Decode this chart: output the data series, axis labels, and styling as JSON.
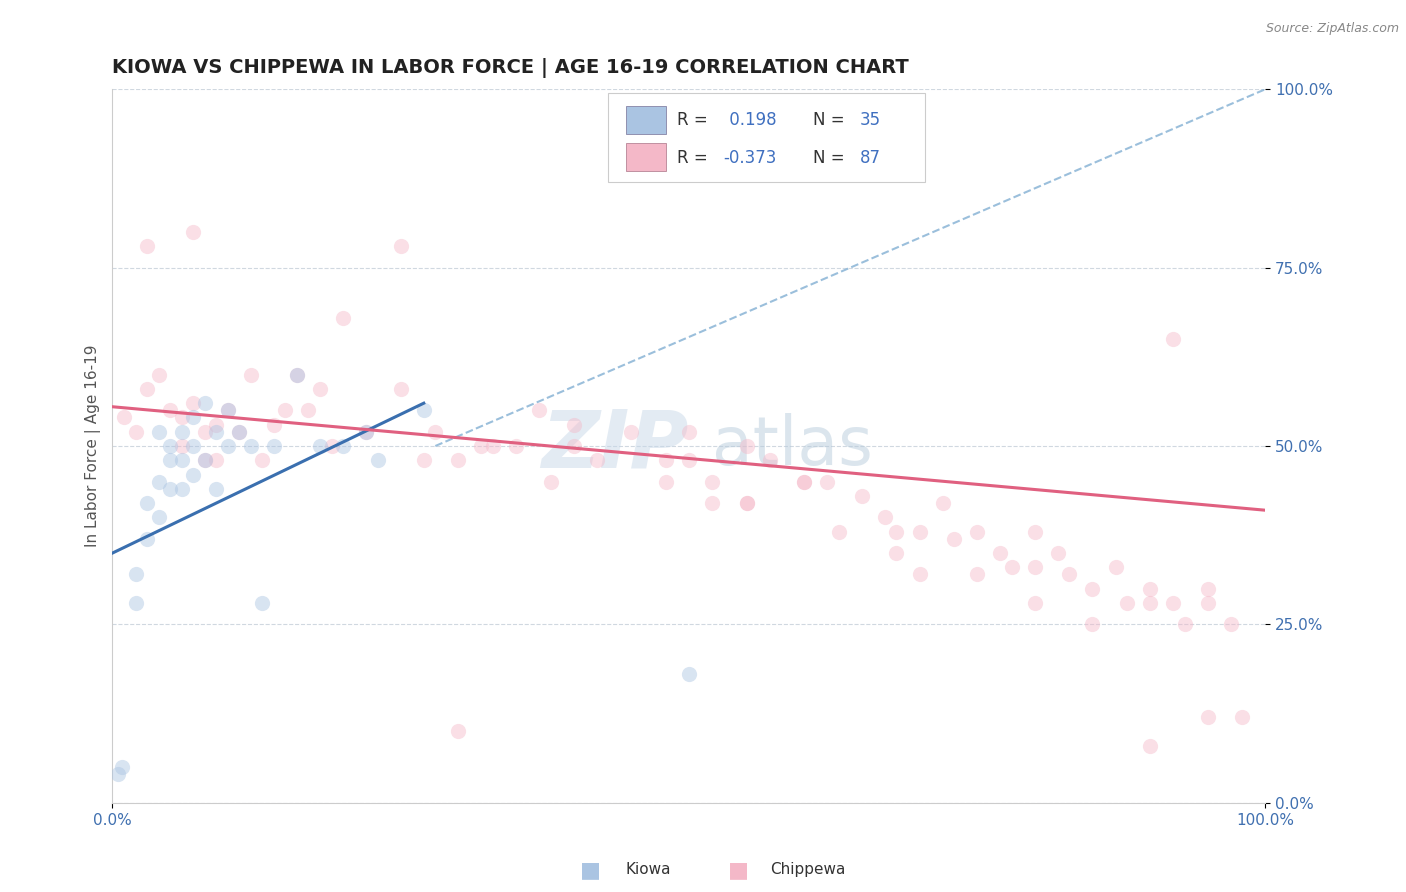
{
  "title": "KIOWA VS CHIPPEWA IN LABOR FORCE | AGE 16-19 CORRELATION CHART",
  "source_text": "Source: ZipAtlas.com",
  "ylabel": "In Labor Force | Age 16-19",
  "xlim": [
    0.0,
    1.0
  ],
  "ylim": [
    0.0,
    1.0
  ],
  "y_ticks": [
    0.0,
    0.25,
    0.5,
    0.75,
    1.0
  ],
  "kiowa_color": "#aac4e2",
  "chippewa_color": "#f4b8c8",
  "kiowa_line_color": "#3a6faf",
  "chippewa_line_color": "#e06080",
  "ref_line_color": "#90b8d8",
  "R_kiowa": 0.198,
  "N_kiowa": 35,
  "R_chippewa": -0.373,
  "N_chippewa": 87,
  "kiowa_scatter_x": [
    0.005,
    0.008,
    0.02,
    0.02,
    0.03,
    0.03,
    0.04,
    0.04,
    0.04,
    0.05,
    0.05,
    0.05,
    0.06,
    0.06,
    0.06,
    0.07,
    0.07,
    0.07,
    0.08,
    0.08,
    0.09,
    0.09,
    0.1,
    0.1,
    0.11,
    0.12,
    0.13,
    0.14,
    0.16,
    0.18,
    0.2,
    0.22,
    0.23,
    0.27,
    0.5
  ],
  "kiowa_scatter_y": [
    0.04,
    0.05,
    0.32,
    0.28,
    0.37,
    0.42,
    0.45,
    0.4,
    0.52,
    0.5,
    0.48,
    0.44,
    0.52,
    0.48,
    0.44,
    0.54,
    0.5,
    0.46,
    0.56,
    0.48,
    0.52,
    0.44,
    0.55,
    0.5,
    0.52,
    0.5,
    0.28,
    0.5,
    0.6,
    0.5,
    0.5,
    0.52,
    0.48,
    0.55,
    0.18
  ],
  "chippewa_scatter_x": [
    0.01,
    0.02,
    0.03,
    0.04,
    0.05,
    0.06,
    0.06,
    0.07,
    0.08,
    0.08,
    0.09,
    0.09,
    0.1,
    0.11,
    0.12,
    0.13,
    0.14,
    0.15,
    0.16,
    0.17,
    0.18,
    0.19,
    0.2,
    0.22,
    0.25,
    0.27,
    0.28,
    0.3,
    0.32,
    0.33,
    0.35,
    0.37,
    0.4,
    0.4,
    0.42,
    0.45,
    0.48,
    0.5,
    0.5,
    0.52,
    0.55,
    0.55,
    0.57,
    0.6,
    0.62,
    0.63,
    0.65,
    0.67,
    0.68,
    0.7,
    0.72,
    0.73,
    0.75,
    0.77,
    0.78,
    0.8,
    0.8,
    0.82,
    0.83,
    0.85,
    0.87,
    0.88,
    0.9,
    0.9,
    0.92,
    0.93,
    0.95,
    0.95,
    0.97,
    0.98,
    0.03,
    0.07,
    0.25,
    0.3,
    0.38,
    0.48,
    0.52,
    0.55,
    0.6,
    0.68,
    0.7,
    0.75,
    0.8,
    0.85,
    0.9,
    0.92,
    0.95
  ],
  "chippewa_scatter_y": [
    0.54,
    0.52,
    0.58,
    0.6,
    0.55,
    0.54,
    0.5,
    0.56,
    0.52,
    0.48,
    0.53,
    0.48,
    0.55,
    0.52,
    0.6,
    0.48,
    0.53,
    0.55,
    0.6,
    0.55,
    0.58,
    0.5,
    0.68,
    0.52,
    0.58,
    0.48,
    0.52,
    0.48,
    0.5,
    0.5,
    0.5,
    0.55,
    0.53,
    0.5,
    0.48,
    0.52,
    0.48,
    0.52,
    0.48,
    0.45,
    0.5,
    0.42,
    0.48,
    0.45,
    0.45,
    0.38,
    0.43,
    0.4,
    0.38,
    0.38,
    0.42,
    0.37,
    0.38,
    0.35,
    0.33,
    0.38,
    0.33,
    0.35,
    0.32,
    0.3,
    0.33,
    0.28,
    0.3,
    0.28,
    0.28,
    0.25,
    0.3,
    0.28,
    0.25,
    0.12,
    0.78,
    0.8,
    0.78,
    0.1,
    0.45,
    0.45,
    0.42,
    0.42,
    0.45,
    0.35,
    0.32,
    0.32,
    0.28,
    0.25,
    0.08,
    0.65,
    0.12
  ],
  "background_color": "#ffffff",
  "grid_color": "#d0d8e0",
  "title_fontsize": 14,
  "axis_label_fontsize": 11,
  "tick_fontsize": 11,
  "scatter_size": 120,
  "scatter_alpha": 0.45,
  "watermark_color": "#c8d8e8",
  "watermark_alpha": 0.5
}
